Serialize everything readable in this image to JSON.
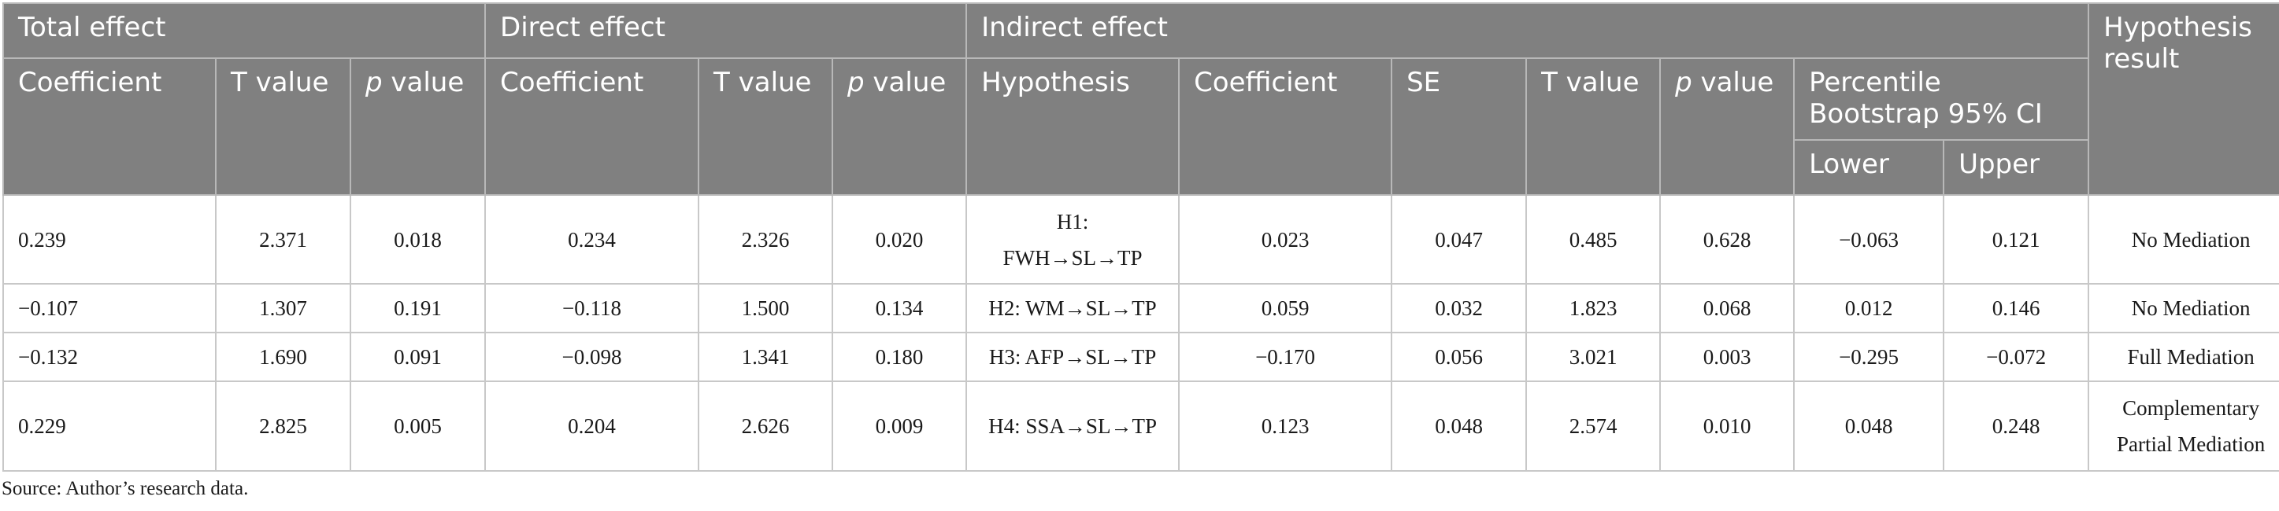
{
  "header": {
    "group_total": "Total effect",
    "group_direct": "Direct effect",
    "group_indirect": "Indirect effect",
    "hypothesis_result": "Hypothesis result",
    "coefficient": "Coefficient",
    "t_value": "T value",
    "p_italic": "p",
    "p_suffix": " value",
    "hypothesis": "Hypothesis",
    "se": "SE",
    "bootstrap_line1": "Percentile",
    "bootstrap_line2": "Bootstrap 95% CI",
    "lower": "Lower",
    "upper": "Upper"
  },
  "rows": [
    {
      "total_coef": "0.239",
      "total_t": "2.371",
      "total_p": "0.018",
      "direct_coef": "0.234",
      "direct_t": "2.326",
      "direct_p": "0.020",
      "hypothesis_line1": "H1:",
      "hypothesis_line2": "FWH→SL→TP",
      "ind_coef": "0.023",
      "ind_se": "0.047",
      "ind_t": "0.485",
      "ind_p": "0.628",
      "lower": "−0.063",
      "upper": "0.121",
      "result_line1": "No Mediation",
      "result_line2": ""
    },
    {
      "total_coef": "−0.107",
      "total_t": "1.307",
      "total_p": "0.191",
      "direct_coef": "−0.118",
      "direct_t": "1.500",
      "direct_p": "0.134",
      "hypothesis_line1": "H2: WM→SL→TP",
      "hypothesis_line2": "",
      "ind_coef": "0.059",
      "ind_se": "0.032",
      "ind_t": "1.823",
      "ind_p": "0.068",
      "lower": "0.012",
      "upper": "0.146",
      "result_line1": "No Mediation",
      "result_line2": ""
    },
    {
      "total_coef": "−0.132",
      "total_t": "1.690",
      "total_p": "0.091",
      "direct_coef": "−0.098",
      "direct_t": "1.341",
      "direct_p": "0.180",
      "hypothesis_line1": "H3: AFP→SL→TP",
      "hypothesis_line2": "",
      "ind_coef": "−0.170",
      "ind_se": "0.056",
      "ind_t": "3.021",
      "ind_p": "0.003",
      "lower": "−0.295",
      "upper": "−0.072",
      "result_line1": "Full Mediation",
      "result_line2": ""
    },
    {
      "total_coef": "0.229",
      "total_t": "2.825",
      "total_p": "0.005",
      "direct_coef": "0.204",
      "direct_t": "2.626",
      "direct_p": "0.009",
      "hypothesis_line1": "H4: SSA→SL→TP",
      "hypothesis_line2": "",
      "ind_coef": "0.123",
      "ind_se": "0.048",
      "ind_t": "2.574",
      "ind_p": "0.010",
      "lower": "0.048",
      "upper": "0.248",
      "result_line1": "Complementary",
      "result_line2": "Partial Mediation"
    }
  ],
  "source_note": "Source: Author’s research data.",
  "colors": {
    "header_bg": "#808080",
    "header_text": "#ffffff",
    "grid": "#c8c8c8"
  }
}
